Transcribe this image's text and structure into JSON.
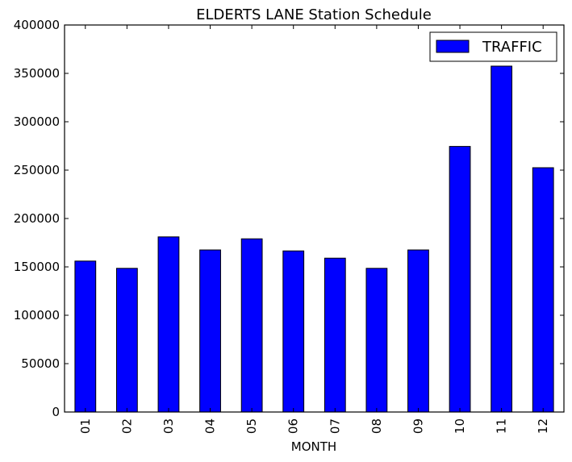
{
  "chart_data": {
    "type": "bar",
    "title": "ELDERTS LANE Station Schedule",
    "xlabel": "MONTH",
    "ylabel": "",
    "categories": [
      "01",
      "02",
      "03",
      "04",
      "05",
      "06",
      "07",
      "08",
      "09",
      "10",
      "11",
      "12"
    ],
    "series": [
      {
        "name": "TRAFFIC",
        "color": "#0000ff",
        "values": [
          156000,
          148500,
          181000,
          167500,
          179000,
          166500,
          159000,
          148500,
          167500,
          274500,
          357500,
          252500
        ]
      }
    ],
    "ylim": [
      0,
      400000
    ],
    "yticks": [
      "0",
      "50000",
      "100000",
      "150000",
      "200000",
      "250000",
      "300000",
      "350000",
      "400000"
    ],
    "grid": false,
    "legend_position": "top-right"
  }
}
